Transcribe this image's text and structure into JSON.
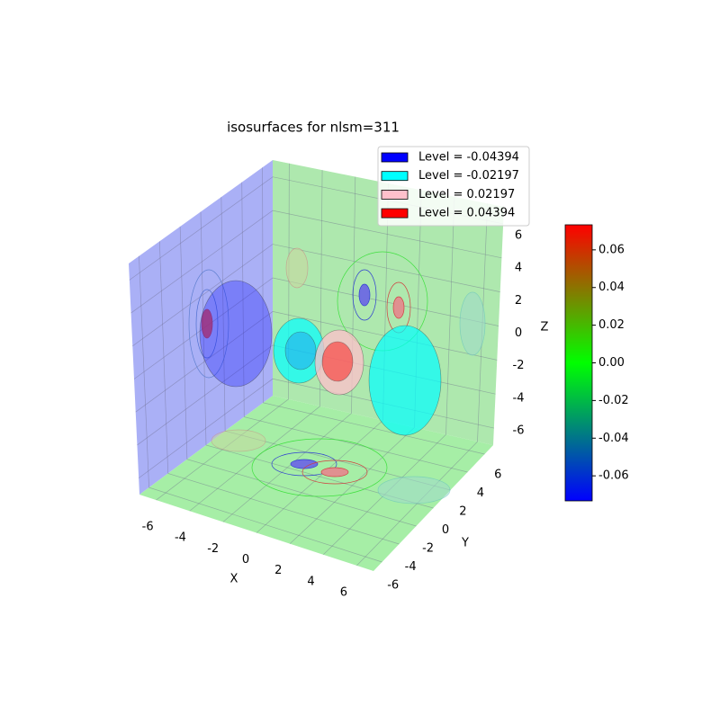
{
  "chart_data": {
    "type": "isosurface3d",
    "title": "isosurfaces for nlsm=311",
    "xlabel": "X",
    "ylabel": "Y",
    "zlabel": "Z",
    "xlim": [
      -7,
      7
    ],
    "ylim": [
      -7,
      7
    ],
    "zlim": [
      -7,
      7
    ],
    "xticks": [
      -6,
      -4,
      -2,
      0,
      2,
      4,
      6
    ],
    "yticks": [
      -6,
      -4,
      -2,
      0,
      2,
      4,
      6
    ],
    "zticks": [
      -6,
      -4,
      -2,
      0,
      2,
      4,
      6
    ],
    "series": [
      {
        "name": "Level = -0.04394",
        "color": "#0000ff",
        "level": -0.04394
      },
      {
        "name": "Level = -0.02197",
        "color": "#00ffff",
        "level": -0.02197
      },
      {
        "name": "Level = 0.02197",
        "color": "#ffc0cb",
        "level": 0.02197
      },
      {
        "name": "Level = 0.04394",
        "color": "#ff0000",
        "level": 0.04394
      }
    ],
    "colorbar": {
      "colormap": [
        "#0000ff",
        "#00ff00",
        "#ff0000"
      ],
      "clim": [
        -0.0733,
        0.0733
      ],
      "ticks": [
        -0.06,
        -0.04,
        -0.02,
        {
          "value": 0,
          "label": "0.00"
        },
        0.02,
        0.04,
        0.06
      ]
    }
  }
}
